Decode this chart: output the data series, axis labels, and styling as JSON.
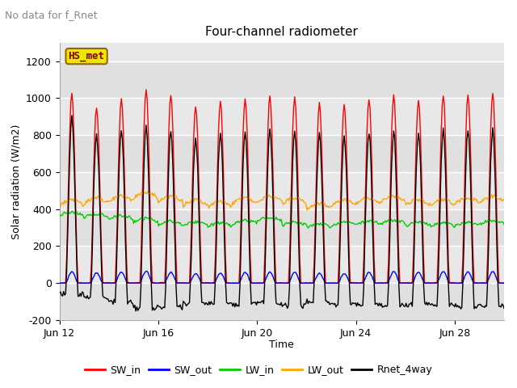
{
  "title": "Four-channel radiometer",
  "top_left_text": "No data for f_Rnet",
  "station_label": "HS_met",
  "ylabel": "Solar radiation (W/m2)",
  "xlabel": "Time",
  "ylim": [
    -200,
    1300
  ],
  "yticks": [
    -200,
    0,
    200,
    400,
    600,
    800,
    1000,
    1200
  ],
  "n_days": 18,
  "xtick_positions": [
    0,
    4,
    8,
    12,
    16
  ],
  "xtick_labels": [
    "Jun 12",
    "Jun 16",
    "Jun 20",
    "Jun 24",
    "Jun 28"
  ],
  "colors": {
    "SW_in": "#ff0000",
    "SW_out": "#0000ff",
    "LW_in": "#00cc00",
    "LW_out": "#ffa500",
    "Rnet_4way": "#000000"
  },
  "legend_labels": [
    "SW_in",
    "SW_out",
    "LW_in",
    "LW_out",
    "Rnet_4way"
  ],
  "plot_bg_color": "#e8e8e8",
  "grid_color": "#ffffff",
  "station_box_facecolor": "#e8e800",
  "station_box_edgecolor": "#996600",
  "station_text_color": "#880000",
  "top_text_color": "#888888",
  "sw_in_peaks": [
    1020,
    950,
    1000,
    1050,
    1020,
    960,
    980,
    1000,
    1010,
    1000,
    970,
    960,
    1000,
    1010,
    990,
    1020,
    1010,
    1020
  ],
  "lw_in_day_means": [
    365,
    355,
    345,
    330,
    315,
    310,
    305,
    320,
    335,
    310,
    300,
    310,
    315,
    320,
    310,
    305,
    310,
    320
  ],
  "lw_out_day_means": [
    420,
    430,
    440,
    460,
    440,
    420,
    410,
    430,
    440,
    430,
    400,
    420,
    430,
    440,
    420,
    420,
    430,
    440
  ]
}
